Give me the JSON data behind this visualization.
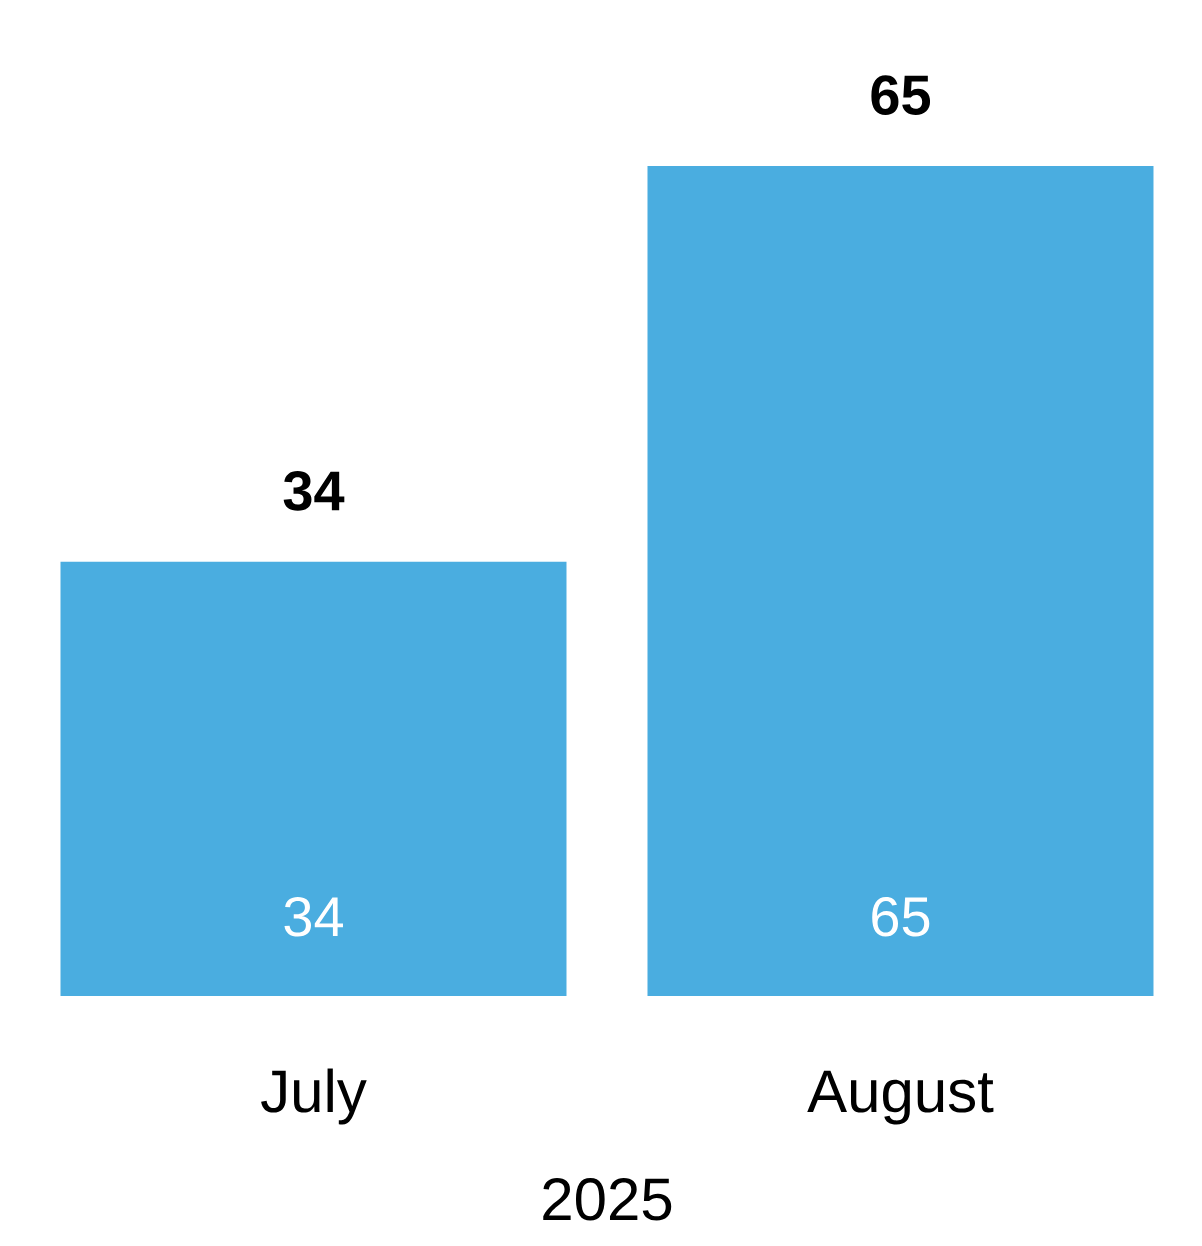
{
  "chart_data": {
    "type": "bar",
    "xlabel": "2025",
    "categories": [
      "July",
      "August"
    ],
    "values": [
      34,
      65
    ],
    "color": "#4aade0",
    "value_labels": [
      "34",
      "65"
    ],
    "annotations": [
      "34",
      "65"
    ]
  }
}
